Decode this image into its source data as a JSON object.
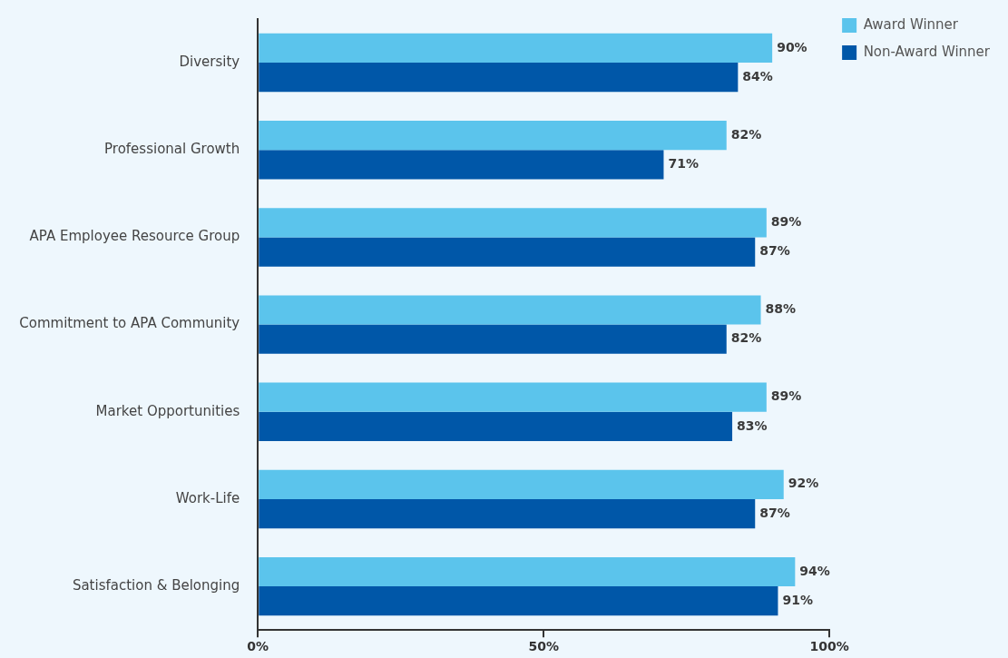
{
  "chart_data": {
    "type": "bar",
    "orientation": "horizontal",
    "categories": [
      "Diversity",
      "Professional Growth",
      "APA Employee Resource Group",
      "Commitment to APA Community",
      "Market Opportunities",
      "Work-Life",
      "Satisfaction & Belonging"
    ],
    "series": [
      {
        "name": "Award Winner",
        "color": "#5bc4ec",
        "values": [
          90,
          82,
          89,
          88,
          89,
          92,
          94
        ],
        "value_labels": [
          "90%",
          "82%",
          "89%",
          "88%",
          "89%",
          "92%",
          "94%"
        ]
      },
      {
        "name": "Non-Award Winner",
        "color": "#0057a8",
        "values": [
          84,
          71,
          87,
          82,
          83,
          87,
          91
        ],
        "value_labels": [
          "84%",
          "71%",
          "87%",
          "82%",
          "83%",
          "87%",
          "91%"
        ]
      }
    ],
    "xlim": [
      0,
      100
    ],
    "xticks": [
      {
        "value": 0,
        "label": "0%"
      },
      {
        "value": 50,
        "label": "50%"
      },
      {
        "value": 100,
        "label": "100%"
      }
    ],
    "legend": "top right"
  }
}
